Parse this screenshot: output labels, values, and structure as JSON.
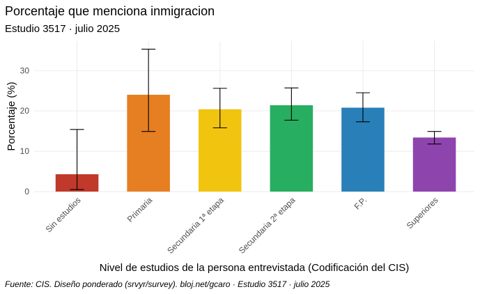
{
  "chart_data": {
    "type": "bar",
    "title": "Porcentaje que menciona inmigracion",
    "subtitle": "Estudio 3517 · julio 2025",
    "xlabel": "Nivel de estudios de la persona entrevistada (Codificación del CIS)",
    "ylabel": "Porcentaje (%)",
    "caption": "Fuente: CIS. Diseño ponderado (srvyr/survey). bloj.net/gcaro · Estudio 3517 · julio 2025",
    "categories": [
      "Sin estudios",
      "Primaria",
      "Secundaria 1ª etapa",
      "Secundaria 2ª etapa",
      "F.P.",
      "Superiores"
    ],
    "values": [
      4.3,
      24.0,
      20.4,
      21.4,
      20.8,
      13.4
    ],
    "error_low": [
      0.5,
      14.9,
      15.8,
      17.7,
      17.3,
      11.8
    ],
    "error_high": [
      15.4,
      35.3,
      25.6,
      25.7,
      24.5,
      14.9
    ],
    "colors": [
      "#c0392b",
      "#e67e22",
      "#f1c40f",
      "#27ae60",
      "#2980b9",
      "#8e44ad"
    ],
    "y_ticks": [
      0,
      10,
      20,
      30
    ],
    "ylim": [
      0,
      37.3
    ],
    "grid": true,
    "legend": "none"
  }
}
